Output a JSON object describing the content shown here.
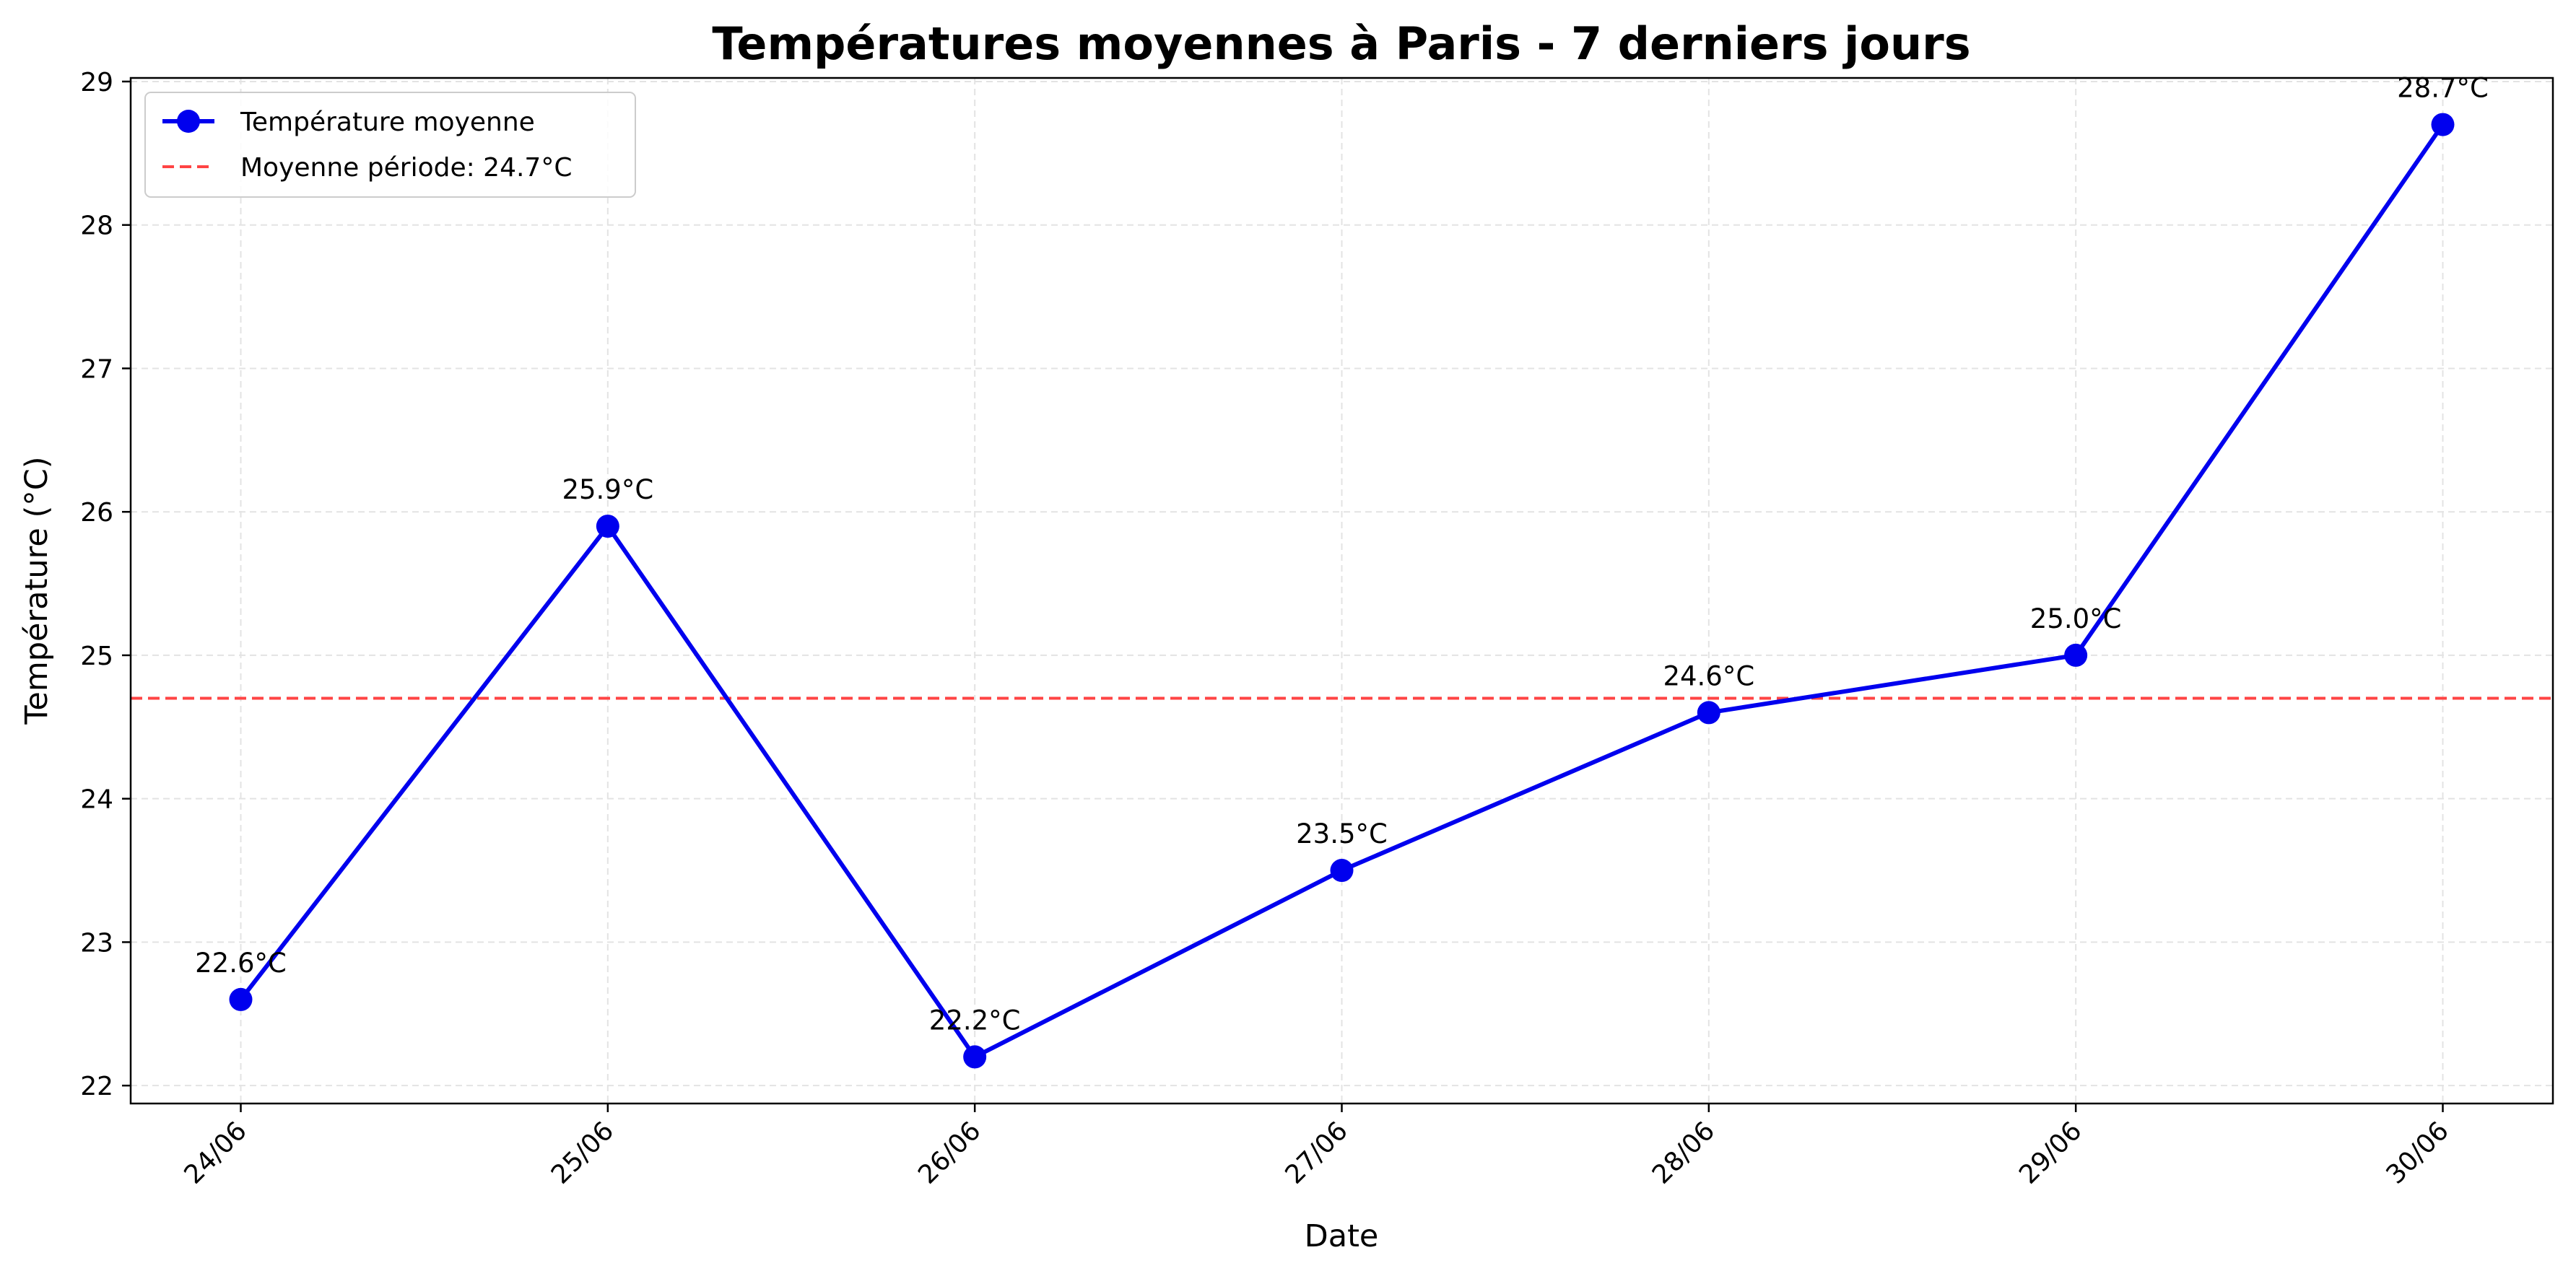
{
  "chart_data": {
    "type": "line",
    "title": "Températures moyennes à Paris - 7 derniers jours",
    "xlabel": "Date",
    "ylabel": "Température (°C)",
    "categories": [
      "24/06",
      "25/06",
      "26/06",
      "27/06",
      "28/06",
      "29/06",
      "30/06"
    ],
    "series": [
      {
        "name": "Température moyenne",
        "values": [
          22.6,
          25.9,
          22.2,
          23.5,
          24.6,
          25.0,
          28.7
        ],
        "color": "#0000ee",
        "marker": "circle"
      }
    ],
    "data_labels": [
      "22.6°C",
      "25.9°C",
      "22.2°C",
      "23.5°C",
      "24.6°C",
      "25.0°C",
      "28.7°C"
    ],
    "reference_line": {
      "name": "Moyenne période: 24.7°C",
      "value": 24.7,
      "color": "#ff4444",
      "style": "dashed"
    },
    "ylim": [
      21.875,
      29.025
    ],
    "yticks": [
      22,
      23,
      24,
      25,
      26,
      27,
      28,
      29
    ],
    "grid": true,
    "legend_position": "top-left"
  }
}
